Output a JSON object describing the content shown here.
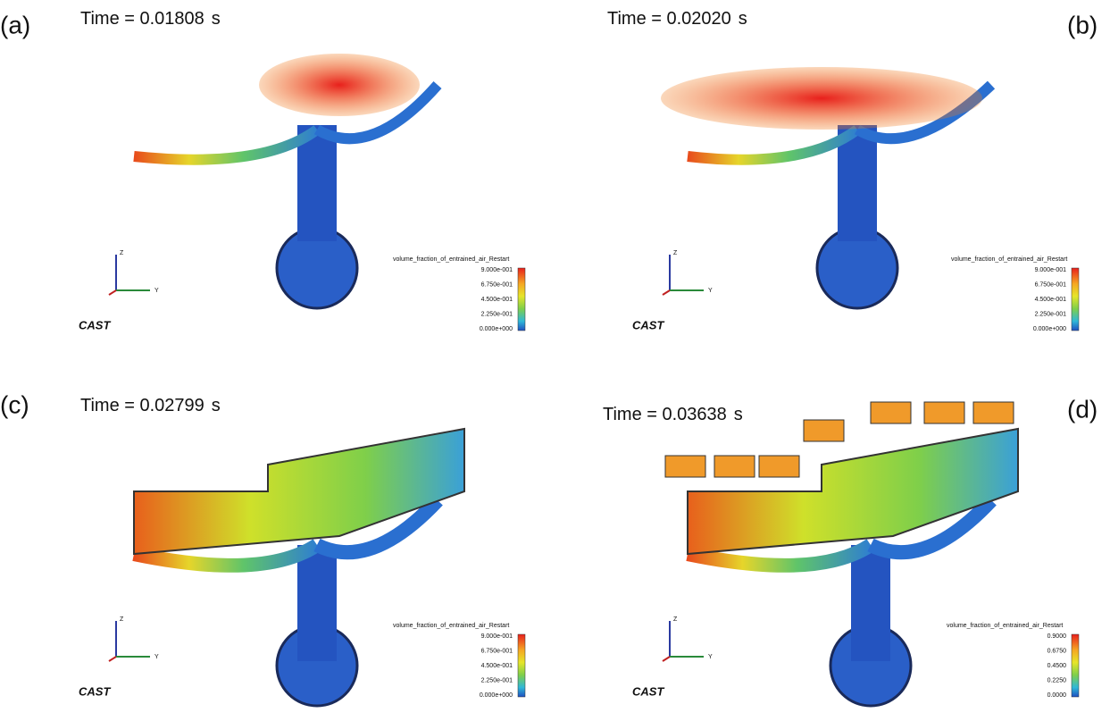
{
  "panels": [
    {
      "label": "(a)",
      "time": "Time = 0.01808",
      "unit": "s",
      "legend_title": "volume_fraction_of_entrained_air_Restart",
      "legend_ticks": [
        "9.000e-001",
        "6.750e-001",
        "4.500e-001",
        "2.250e-001",
        "0.000e+000"
      ],
      "axis_z": "Z",
      "axis_y": "Y",
      "logo": "CAST"
    },
    {
      "label": "(b)",
      "time": "Time = 0.02020",
      "unit": "s",
      "legend_title": "volume_fraction_of_entrained_air_Restart",
      "legend_ticks": [
        "9.000e-001",
        "6.750e-001",
        "4.500e-001",
        "2.250e-001",
        "0.000e+000"
      ],
      "axis_z": "Z",
      "axis_y": "Y",
      "logo": "CAST"
    },
    {
      "label": "(c)",
      "time": "Time = 0.02799",
      "unit": "s",
      "legend_title": "volume_fraction_of_entrained_air_Restart",
      "legend_ticks": [
        "9.000e-001",
        "6.750e-001",
        "4.500e-001",
        "2.250e-001",
        "0.000e+000"
      ],
      "axis_z": "Z",
      "axis_y": "Y",
      "logo": "CAST"
    },
    {
      "label": "(d)",
      "time": "Time = 0.03638",
      "unit": "s",
      "legend_title": "volume_fraction_of_entrained_air_Restart",
      "legend_ticks": [
        "0.9000",
        "0.6750",
        "0.4500",
        "0.2250",
        "0.0000"
      ],
      "axis_z": "Z",
      "axis_y": "Y",
      "logo": "CAST"
    }
  ]
}
